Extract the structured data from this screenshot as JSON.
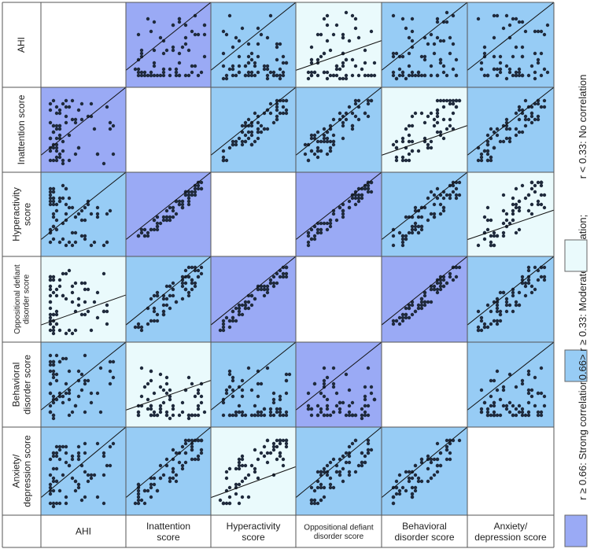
{
  "chart_data": {
    "type": "scatter",
    "subtype": "correlation-scatter-matrix",
    "variables": [
      "AHI",
      "Inattention score",
      "Hyperactivity score",
      "Oppositional defiant disorder score",
      "Behavioral disorder score",
      "Anxiety/ depression score"
    ],
    "row_labels": [
      [
        "AHI"
      ],
      [
        "Inattention score"
      ],
      [
        "Hyperactivity",
        "score"
      ],
      [
        "Oppositional defiant",
        "disorder score"
      ],
      [
        "Behavioral",
        "disorder score"
      ],
      [
        "Anxiety/",
        "depression score"
      ]
    ],
    "col_labels": [
      [
        "AHI"
      ],
      [
        "Inattention",
        "score"
      ],
      [
        "Hyperactivity",
        "score"
      ],
      [
        "Oppositional defiant",
        "disorder score"
      ],
      [
        "Behavioral",
        "disorder score"
      ],
      [
        "Anxiety/",
        "depression score"
      ]
    ],
    "correlation_level": [
      [
        "none",
        "strong",
        "moderate",
        "none",
        "moderate",
        "moderate"
      ],
      [
        "strong",
        "none",
        "moderate",
        "moderate",
        "none",
        "moderate"
      ],
      [
        "moderate",
        "strong",
        "none",
        "strong",
        "moderate",
        "none"
      ],
      [
        "none",
        "moderate",
        "strong",
        "none",
        "strong",
        "moderate"
      ],
      [
        "moderate",
        "none",
        "moderate",
        "strong",
        "none",
        "moderate"
      ],
      [
        "moderate",
        "moderate",
        "none",
        "moderate",
        "moderate",
        "none"
      ]
    ],
    "legend": [
      {
        "level": "strong",
        "label": "r ≥ 0.66: Strong correlation;",
        "color": "#9aaaf5"
      },
      {
        "level": "moderate",
        "label": "0.66> r ≥ 0.33: Moderate correlation;",
        "color": "#97ccf5"
      },
      {
        "level": "none",
        "label": "r < 0.33: No correlation",
        "color": "#eafafc"
      }
    ],
    "colors": {
      "strong": "#9aaaf5",
      "moderate": "#97ccf5",
      "none": "#eafafc",
      "diagonal": "#ffffff",
      "point": "#1f2a3c",
      "grid": "#555555"
    },
    "legend_placement": "right"
  }
}
